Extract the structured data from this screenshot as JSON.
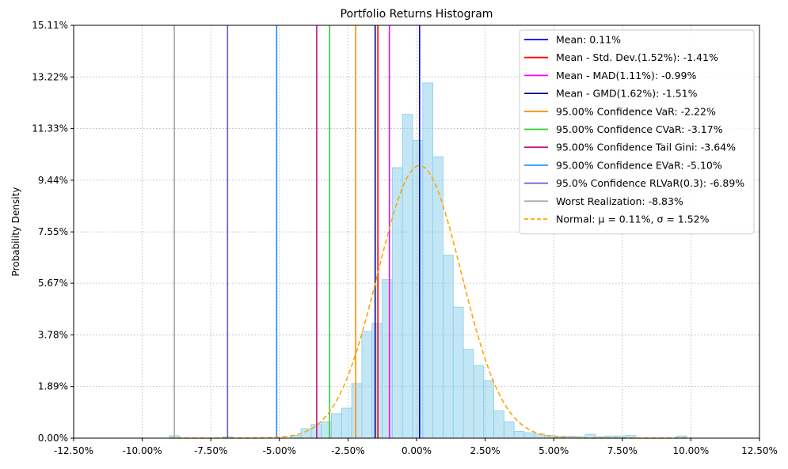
{
  "chart_data": {
    "type": "bar",
    "title": "Portfolio Returns Histogram",
    "xlabel": "",
    "ylabel": "Probability Density",
    "xlim": [
      -12.5,
      12.5
    ],
    "ylim": [
      0,
      15.11
    ],
    "x_ticks": [
      "-12.50%",
      "-10.00%",
      "-7.50%",
      "-5.00%",
      "-2.50%",
      "0.00%",
      "2.50%",
      "5.00%",
      "7.50%",
      "10.00%",
      "12.50%"
    ],
    "x_tick_values": [
      -12.5,
      -10,
      -7.5,
      -5,
      -2.5,
      0,
      2.5,
      5,
      7.5,
      10,
      12.5
    ],
    "y_ticks": [
      "0.00%",
      "1.89%",
      "3.78%",
      "5.67%",
      "7.55%",
      "9.44%",
      "11.33%",
      "13.22%",
      "15.11%"
    ],
    "y_tick_values": [
      0,
      1.89,
      3.78,
      5.67,
      7.55,
      9.44,
      11.33,
      13.22,
      15.11
    ],
    "grid": true,
    "legend_position": "top-right",
    "histogram": {
      "bin_width": 0.37,
      "color": "#87ceeb",
      "bins": [
        {
          "x": -8.83,
          "density": 0.09
        },
        {
          "x": -6.89,
          "density": 0.05
        },
        {
          "x": -4.4,
          "density": 0.1
        },
        {
          "x": -4.03,
          "density": 0.35
        },
        {
          "x": -3.66,
          "density": 0.5
        },
        {
          "x": -3.29,
          "density": 0.6
        },
        {
          "x": -2.92,
          "density": 0.9
        },
        {
          "x": -2.55,
          "density": 1.1
        },
        {
          "x": -2.18,
          "density": 2.0
        },
        {
          "x": -1.81,
          "density": 3.9
        },
        {
          "x": -1.44,
          "density": 4.2
        },
        {
          "x": -1.07,
          "density": 5.8
        },
        {
          "x": -0.7,
          "density": 9.9
        },
        {
          "x": -0.33,
          "density": 11.85
        },
        {
          "x": 0.04,
          "density": 10.9
        },
        {
          "x": 0.41,
          "density": 13.0
        },
        {
          "x": 0.78,
          "density": 10.3
        },
        {
          "x": 1.15,
          "density": 6.7
        },
        {
          "x": 1.52,
          "density": 4.8
        },
        {
          "x": 1.89,
          "density": 3.25
        },
        {
          "x": 2.26,
          "density": 2.65
        },
        {
          "x": 2.63,
          "density": 2.1
        },
        {
          "x": 3.0,
          "density": 1.0
        },
        {
          "x": 3.37,
          "density": 0.6
        },
        {
          "x": 3.74,
          "density": 0.25
        },
        {
          "x": 4.11,
          "density": 0.2
        },
        {
          "x": 4.48,
          "density": 0.15
        },
        {
          "x": 4.85,
          "density": 0.1
        },
        {
          "x": 5.22,
          "density": 0.07
        },
        {
          "x": 5.59,
          "density": 0.07
        },
        {
          "x": 5.96,
          "density": 0.06
        },
        {
          "x": 6.33,
          "density": 0.14
        },
        {
          "x": 6.7,
          "density": 0.06
        },
        {
          "x": 7.07,
          "density": 0.08
        },
        {
          "x": 7.44,
          "density": 0.08
        },
        {
          "x": 7.81,
          "density": 0.1
        },
        {
          "x": 9.66,
          "density": 0.08
        }
      ]
    },
    "reference_lines": [
      {
        "label": "Mean: 0.11%",
        "value": 0.11,
        "color": "#0000ff"
      },
      {
        "label": "Mean - Std. Dev.(1.52%): -1.41%",
        "value": -1.41,
        "color": "#ff0000"
      },
      {
        "label": "Mean - MAD(1.11%): -0.99%",
        "value": -0.99,
        "color": "#ff00ff"
      },
      {
        "label": "Mean - GMD(1.62%): -1.51%",
        "value": -1.51,
        "color": "#000080"
      },
      {
        "label": "95.00% Confidence VaR: -2.22%",
        "value": -2.22,
        "color": "#ff8c00"
      },
      {
        "label": "95.00% Confidence CVaR: -3.17%",
        "value": -3.17,
        "color": "#32cd32"
      },
      {
        "label": "95.00% Confidence Tail Gini: -3.64%",
        "value": -3.64,
        "color": "#c71585"
      },
      {
        "label": "95.00% Confidence EVaR: -5.10%",
        "value": -5.1,
        "color": "#1e90ff"
      },
      {
        "label": "95.0% Confidence RLVaR(0.3): -6.89%",
        "value": -6.89,
        "color": "#6a5acd"
      },
      {
        "label": "Worst Realization: -8.83%",
        "value": -8.83,
        "color": "#a9a9a9"
      }
    ],
    "normal_curve": {
      "label_prefix": "Normal: ",
      "label": "Normal: μ = 0.11%, σ = 1.52%",
      "mu": 0.11,
      "sigma": 1.52,
      "color": "#ffa500"
    }
  }
}
